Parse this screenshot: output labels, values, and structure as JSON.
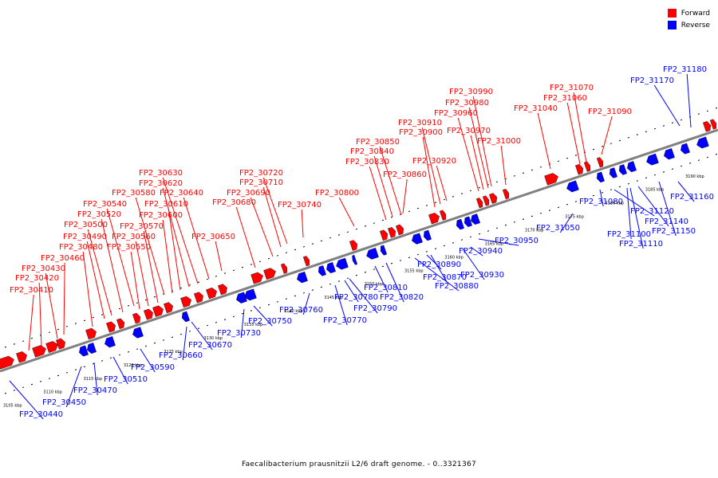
{
  "caption": "Faecalibacterium prausnitzii L2/6 draft genome. - 0..3321367",
  "legend": [
    {
      "label": "Forward",
      "color": "#ff0000"
    },
    {
      "label": "Reverse",
      "color": "#0000ff"
    }
  ],
  "colors": {
    "forward": "#ff0000",
    "reverse": "#0000ff",
    "axis": "#808080"
  },
  "scale_labels": [
    "3105 kbp",
    "3110 kbp",
    "3115 kbp",
    "3120 kbp",
    "3125 kbp",
    "3130 kbp",
    "3135 kbp",
    "3140 kbp",
    "3145 kbp",
    "3150 kbp",
    "3155 kbp",
    "3160 kbp",
    "3165 kbp",
    "3170 kbp",
    "3175 kbp",
    "3180 kbp",
    "3185 kbp",
    "3190 kbp"
  ],
  "forward_genes": [
    "FP2_30410",
    "FP2_30420",
    "FP2_30430",
    "FP2_30460",
    "FP2_30480",
    "FP2_30490",
    "FP2_30500",
    "FP2_30520",
    "FP2_30540",
    "FP2_30550",
    "FP2_30560",
    "FP2_30570",
    "FP2_30580",
    "FP2_30600",
    "FP2_30610",
    "FP2_30620",
    "FP2_30630",
    "FP2_30640",
    "FP2_30650",
    "FP2_30680",
    "FP2_30690",
    "FP2_30710",
    "FP2_30720",
    "FP2_30740",
    "FP2_30800",
    "FP2_30830",
    "FP2_30840",
    "FP2_30850",
    "FP2_30860",
    "FP2_30900",
    "FP2_30910",
    "FP2_30920",
    "FP2_30960",
    "FP2_30970",
    "FP2_30980",
    "FP2_30990",
    "FP2_31000",
    "FP2_31040",
    "FP2_31060",
    "FP2_31070",
    "FP2_31090"
  ],
  "reverse_genes": [
    "FP2_30440",
    "FP2_30450",
    "FP2_30470",
    "FP2_30510",
    "FP2_30590",
    "FP2_30660",
    "FP2_30670",
    "FP2_30730",
    "FP2_30750",
    "FP2_30760",
    "FP2_30770",
    "FP2_30780",
    "FP2_30790",
    "FP2_30810",
    "FP2_30820",
    "FP2_30870",
    "FP2_30880",
    "FP2_30890",
    "FP2_30930",
    "FP2_30940",
    "FP2_30950",
    "FP2_31050",
    "FP2_31080",
    "FP2_31100",
    "FP2_31110",
    "FP2_31120",
    "FP2_31140",
    "FP2_31150",
    "FP2_31160",
    "FP2_31170",
    "FP2_31180"
  ]
}
